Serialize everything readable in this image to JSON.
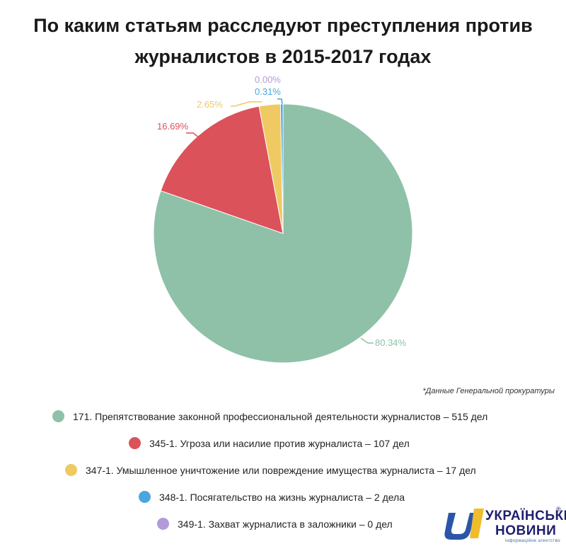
{
  "title": {
    "line1": "По каким статьям расследуют преступления против",
    "line2": "журналистов в 2015-2017 годах"
  },
  "source_note": "*Данные Генеральной прокуратуры",
  "chart_data": {
    "type": "pie",
    "title": "По каким статьям расследуют преступления против журналистов в 2015-2017 годах",
    "slices": [
      {
        "label": "171. Препятствование законной профессиональной деятельности журналистов – 515 дел",
        "value": 515,
        "percent_label": "80.34%",
        "color": "#8fc1a8"
      },
      {
        "label": "345-1. Угроза или насилие против журналиста – 107 дел",
        "value": 107,
        "percent_label": "16.69%",
        "color": "#db525a"
      },
      {
        "label": "347-1. Умышленное уничтожение или повреждение имущества журналиста – 17 дел",
        "value": 17,
        "percent_label": "2.65%",
        "color": "#efc962"
      },
      {
        "label": "348-1. Посягательство на жизнь журналиста – 2 дела",
        "value": 2,
        "percent_label": "0.31%",
        "color": "#4aa6de"
      },
      {
        "label": "349-1. Захват журналиста в заложники – 0 дел",
        "value": 0,
        "percent_label": "0.00%",
        "color": "#b39ad9"
      }
    ]
  },
  "logo": {
    "line1": "УКРАЇНСЬКІ",
    "line2": "НОВИНИ",
    "tagline": "інформаційне агентство",
    "reg_mark": "®"
  }
}
